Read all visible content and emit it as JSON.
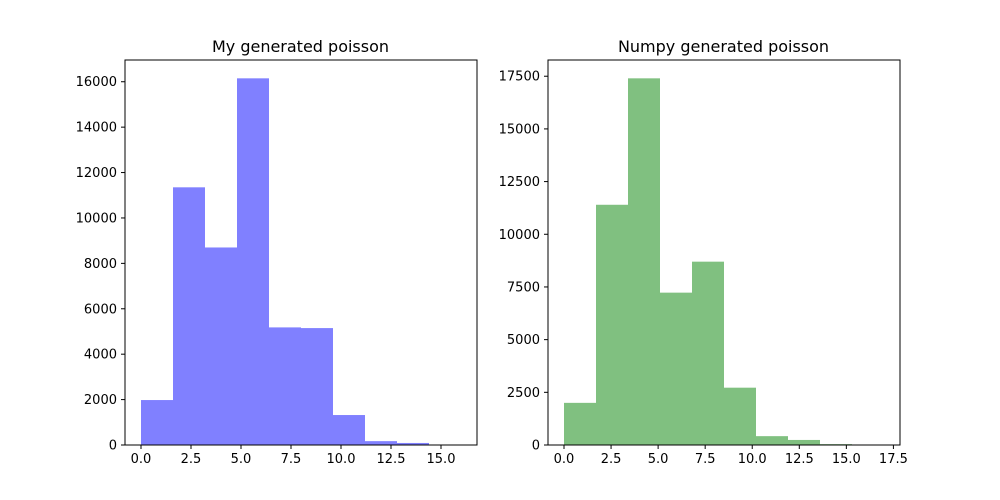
{
  "chart_data": [
    {
      "type": "bar",
      "title": "My generated poisson",
      "xlabel": "",
      "ylabel": "",
      "color": "#8080ff",
      "bin_edges": [
        0,
        1.6,
        3.2,
        4.8,
        6.4,
        8.0,
        9.6,
        11.2,
        12.8,
        14.4,
        16.0
      ],
      "values": [
        1980,
        11350,
        8700,
        16150,
        5180,
        5150,
        1320,
        170,
        90,
        20
      ],
      "xlim": [
        -0.8,
        16.8
      ],
      "ylim": [
        0,
        16957.5
      ],
      "x_ticks": [
        0,
        2.5,
        5,
        7.5,
        10,
        12.5,
        15
      ],
      "x_tick_labels": [
        "0.0",
        "2.5",
        "5.0",
        "7.5",
        "10.0",
        "12.5",
        "15.0"
      ],
      "y_ticks": [
        0,
        2000,
        4000,
        6000,
        8000,
        10000,
        12000,
        14000,
        16000
      ],
      "y_tick_labels": [
        "0",
        "2000",
        "4000",
        "6000",
        "8000",
        "10000",
        "12000",
        "14000",
        "16000"
      ],
      "grid": false
    },
    {
      "type": "bar",
      "title": "Numpy generated poisson",
      "xlabel": "",
      "ylabel": "",
      "color": "#80c080",
      "bin_edges": [
        0,
        1.7,
        3.4,
        5.1,
        6.8,
        8.5,
        10.2,
        11.9,
        13.6,
        15.3,
        17.0
      ],
      "values": [
        2000,
        11400,
        17400,
        7230,
        8700,
        2720,
        420,
        240,
        40,
        10
      ],
      "xlim": [
        -0.85,
        17.85
      ],
      "ylim": [
        0,
        18270
      ],
      "x_ticks": [
        0,
        2.5,
        5,
        7.5,
        10,
        12.5,
        15,
        17.5
      ],
      "x_tick_labels": [
        "0.0",
        "2.5",
        "5.0",
        "7.5",
        "10.0",
        "12.5",
        "15.0",
        "17.5"
      ],
      "y_ticks": [
        0,
        2500,
        5000,
        7500,
        10000,
        12500,
        15000,
        17500
      ],
      "y_tick_labels": [
        "0",
        "2500",
        "5000",
        "7500",
        "10000",
        "12500",
        "15000",
        "17500"
      ],
      "grid": false
    }
  ]
}
